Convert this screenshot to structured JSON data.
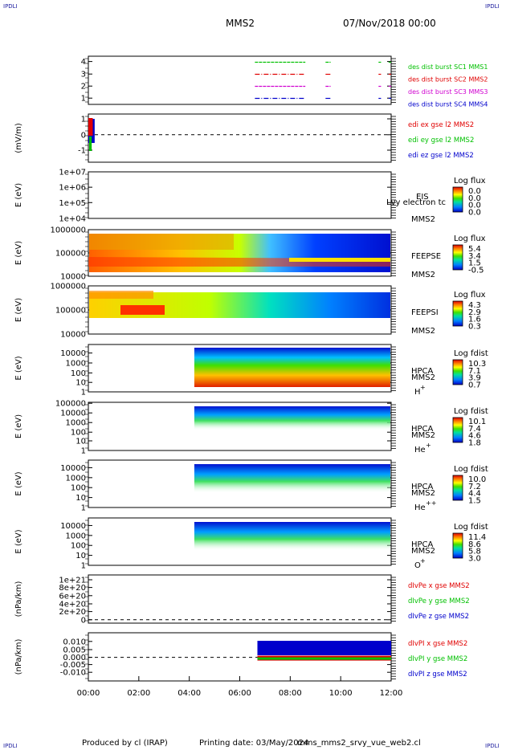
{
  "corner_tags": {
    "top_left": "IPDLI",
    "top_right": "IPDLI",
    "bottom_left": "IPDLI",
    "bottom_right": "IPDLI"
  },
  "header": {
    "spacecraft": "MMS2",
    "datetime": "07/Nov/2018 00:00"
  },
  "footer": {
    "producer": "Produced by cl (IRAP)",
    "printing_date": "Printing date: 03/May/2024",
    "script": "mms_mms2_srvy_vue_web2.cl"
  },
  "colors": {
    "red": "#e00000",
    "green": "#00c000",
    "blue": "#0000cc",
    "magenta": "#d000d0",
    "dashes": "#000000"
  },
  "chart_data": [
    {
      "id": "burst",
      "type": "line",
      "ylim": [
        0.5,
        4.5
      ],
      "yticks": [
        "1",
        "2",
        "3",
        "4"
      ],
      "series": [
        {
          "name": "des dist burst SC1 MMS1",
          "color": "#00c000",
          "level": 4,
          "segments": [
            [
              6.6,
              8.6
            ],
            [
              9.4,
              9.6
            ],
            [
              11.5,
              11.6
            ],
            [
              11.9,
              12.0
            ]
          ]
        },
        {
          "name": "des dist burst SC2 MMS2",
          "color": "#e00000",
          "level": 3,
          "segments": [
            [
              6.6,
              8.6
            ],
            [
              9.4,
              9.6
            ],
            [
              11.5,
              11.6
            ],
            [
              11.9,
              12.0
            ]
          ]
        },
        {
          "name": "des dist burst SC3 MMS3",
          "color": "#d000d0",
          "level": 2,
          "segments": [
            [
              6.6,
              8.6
            ],
            [
              9.4,
              9.6
            ],
            [
              11.5,
              11.6
            ],
            [
              11.9,
              12.0
            ]
          ]
        },
        {
          "name": "des dist burst SC4 MMS4",
          "color": "#0000cc",
          "level": 1,
          "segments": [
            [
              6.6,
              8.6
            ],
            [
              9.4,
              9.6
            ],
            [
              11.5,
              11.6
            ],
            [
              11.9,
              12.0
            ]
          ]
        }
      ]
    },
    {
      "id": "edi",
      "type": "line",
      "ylabel": "(mV/m)",
      "ylim": [
        -2,
        1.5
      ],
      "yticks": [
        "1",
        "0",
        "-1"
      ],
      "series": [
        {
          "name": "edi ex gse l2 MMS2",
          "color": "#e00000"
        },
        {
          "name": "edi ey gse l2 MMS2",
          "color": "#00c000"
        },
        {
          "name": "edi ez gse l2 MMS2",
          "color": "#0000cc"
        }
      ],
      "data_interval_hours": [
        0.0,
        0.25
      ]
    },
    {
      "id": "eis",
      "type": "heatmap",
      "ylabel": "E (eV)",
      "yticks": [
        "1e+07",
        "1e+06",
        "1e+05",
        "1e+04"
      ],
      "instrument": "EIS",
      "overlay_text": "Lvy electron tc",
      "spacecraft": "MMS2",
      "colorbar": {
        "title": "Log flux",
        "ticks": [
          "0.0",
          "0.0",
          "0.0",
          "0.0"
        ]
      },
      "note": "no data"
    },
    {
      "id": "feepse",
      "type": "heatmap",
      "ylabel": "E (eV)",
      "yticks": [
        "1000000",
        "100000",
        "10000"
      ],
      "instrument": "FEEPSE",
      "spacecraft": "MMS2",
      "colorbar": {
        "title": "Log flux",
        "ticks": [
          "5.4",
          "3.4",
          "1.5",
          "-0.5"
        ]
      },
      "data_interval_hours": [
        0.0,
        12.0
      ]
    },
    {
      "id": "feepsi",
      "type": "heatmap",
      "ylabel": "E (eV)",
      "yticks": [
        "1000000",
        "100000",
        "10000"
      ],
      "instrument": "FEEPSI",
      "spacecraft": "MMS2",
      "colorbar": {
        "title": "Log flux",
        "ticks": [
          "4.3",
          "2.9",
          "1.6",
          "0.3"
        ]
      },
      "data_interval_hours": [
        0.0,
        12.0
      ]
    },
    {
      "id": "hpca_h",
      "type": "heatmap",
      "ylabel": "E (eV)",
      "yticks": [
        "10000",
        "1000",
        "100",
        "10",
        "1"
      ],
      "instrument": "HPCA",
      "spacecraft": "MMS2",
      "species": "H",
      "charge": "+",
      "colorbar": {
        "title": "Log fdist",
        "ticks": [
          "10.3",
          "7.1",
          "3.9",
          "0.7"
        ]
      },
      "data_interval_hours": [
        4.2,
        12.0
      ]
    },
    {
      "id": "hpca_he1",
      "type": "heatmap",
      "ylabel": "E (eV)",
      "yticks": [
        "100000",
        "10000",
        "1000",
        "100",
        "10",
        "1"
      ],
      "instrument": "HPCA",
      "spacecraft": "MMS2",
      "species": "He",
      "charge": "+",
      "colorbar": {
        "title": "Log fdist",
        "ticks": [
          "10.1",
          "7.4",
          "4.6",
          "1.8"
        ]
      },
      "data_interval_hours": [
        4.2,
        12.0
      ]
    },
    {
      "id": "hpca_he2",
      "type": "heatmap",
      "ylabel": "E (eV)",
      "yticks": [
        "10000",
        "1000",
        "100",
        "10",
        "1"
      ],
      "instrument": "HPCA",
      "spacecraft": "MMS2",
      "species": "He",
      "charge": "++",
      "colorbar": {
        "title": "Log fdist",
        "ticks": [
          "10.0",
          "7.2",
          "4.4",
          "1.5"
        ]
      },
      "data_interval_hours": [
        4.2,
        12.0
      ]
    },
    {
      "id": "hpca_o",
      "type": "heatmap",
      "ylabel": "E (eV)",
      "yticks": [
        "10000",
        "1000",
        "100",
        "10",
        "1"
      ],
      "instrument": "HPCA",
      "spacecraft": "MMS2",
      "species": "O",
      "charge": "+",
      "colorbar": {
        "title": "Log fdist",
        "ticks": [
          "11.4",
          "8.6",
          "5.8",
          "3.0"
        ]
      },
      "data_interval_hours": [
        4.2,
        12.0
      ]
    },
    {
      "id": "divpe",
      "type": "line",
      "ylabel": "(nPa/km)",
      "yticks": [
        "1e+21",
        "8e+20",
        "6e+20",
        "4e+20",
        "2e+20",
        "0"
      ],
      "series": [
        {
          "name": "dIvPe x gse MMS2",
          "color": "#e00000"
        },
        {
          "name": "dIvPe y gse MMS2",
          "color": "#00c000"
        },
        {
          "name": "dIvPe z gse MMS2",
          "color": "#0000cc"
        }
      ]
    },
    {
      "id": "divpi",
      "type": "line",
      "ylabel": "(nPa/km)",
      "ylim": [
        -0.015,
        0.015
      ],
      "yticks": [
        "0.010",
        "0.005",
        "0.000",
        "-0.005",
        "-0.010"
      ],
      "series": [
        {
          "name": "dIvPI x gse MMS2",
          "color": "#e00000"
        },
        {
          "name": "dIvPI y gse MMS2",
          "color": "#00c000"
        },
        {
          "name": "dIvPI z gse MMS2",
          "color": "#0000cc"
        }
      ],
      "data_interval_hours": [
        6.7,
        12.0
      ]
    }
  ],
  "time_axis": {
    "ticks": [
      "00:00",
      "02:00",
      "04:00",
      "06:00",
      "08:00",
      "10:00",
      "12:00"
    ],
    "range_hours": [
      0,
      12
    ]
  }
}
